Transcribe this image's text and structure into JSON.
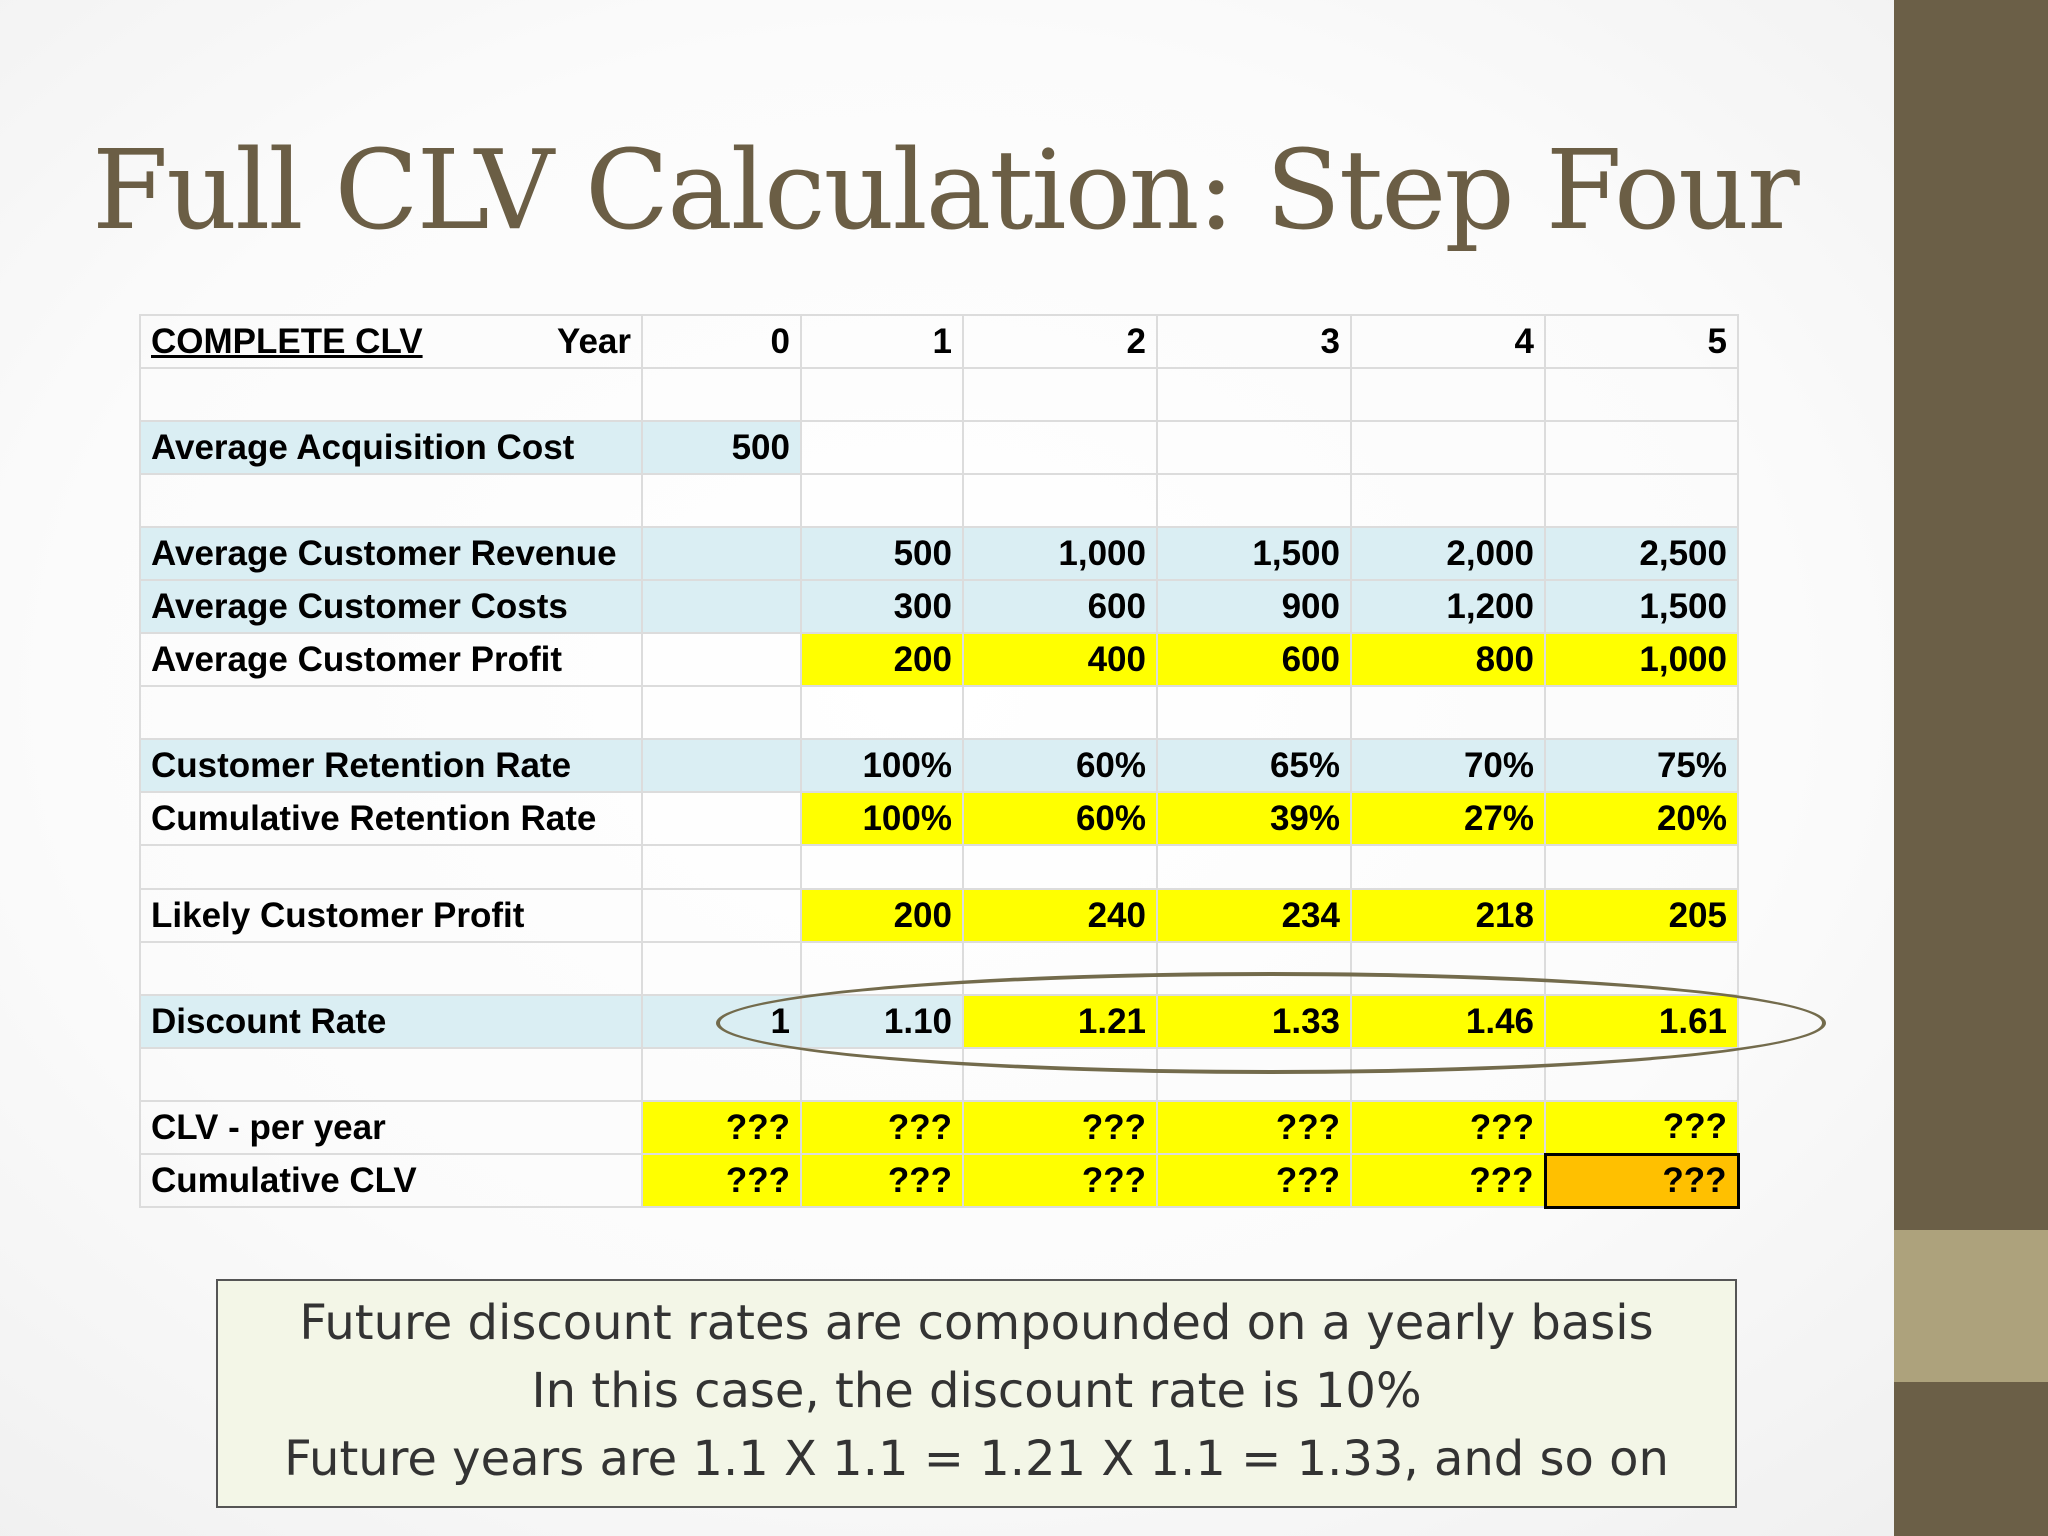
{
  "slide": {
    "title": "Full CLV Calculation: Step Four",
    "colors": {
      "title": "#6b5e45",
      "side_bar": "#6b5f47",
      "side_accent": "#ada27c",
      "label_fill": "#daeef3",
      "highlight": "#ffff00",
      "final_cell": "#ffc000"
    }
  },
  "table": {
    "header": {
      "label": "COMPLETE CLV",
      "year_label": "Year",
      "years": [
        "0",
        "1",
        "2",
        "3",
        "4",
        "5"
      ]
    },
    "acquisition": {
      "label": "Average Acquisition Cost",
      "value": "500"
    },
    "revenue": {
      "label": "Average Customer Revenue",
      "values": [
        "500",
        "1,000",
        "1,500",
        "2,000",
        "2,500"
      ]
    },
    "costs": {
      "label": "Average Customer Costs",
      "values": [
        "300",
        "600",
        "900",
        "1,200",
        "1,500"
      ]
    },
    "profit": {
      "label": "Average Customer Profit",
      "values": [
        "200",
        "400",
        "600",
        "800",
        "1,000"
      ]
    },
    "retention": {
      "label": "Customer Retention Rate",
      "values": [
        "100%",
        "60%",
        "65%",
        "70%",
        "75%"
      ]
    },
    "cumulative_retention": {
      "label": "Cumulative Retention Rate",
      "values": [
        "100%",
        "60%",
        "39%",
        "27%",
        "20%"
      ]
    },
    "likely_profit": {
      "label": "Likely Customer Profit",
      "values": [
        "200",
        "240",
        "234",
        "218",
        "205"
      ]
    },
    "discount": {
      "label": "Discount Rate",
      "values": [
        "1",
        "1.10",
        "1.21",
        "1.33",
        "1.46",
        "1.61"
      ]
    },
    "clv_per_year": {
      "label": "CLV - per year",
      "values": [
        "???",
        "???",
        "???",
        "???",
        "???",
        "???"
      ]
    },
    "cumulative_clv": {
      "label": "Cumulative CLV",
      "values": [
        "???",
        "???",
        "???",
        "???",
        "???",
        "???"
      ]
    }
  },
  "note": {
    "lines": [
      "Future discount rates are compounded on a yearly basis",
      "In this case, the discount rate is 10%",
      "Future years are 1.1 X 1.1 = 1.21 X 1.1 = 1.33, and so on"
    ]
  }
}
